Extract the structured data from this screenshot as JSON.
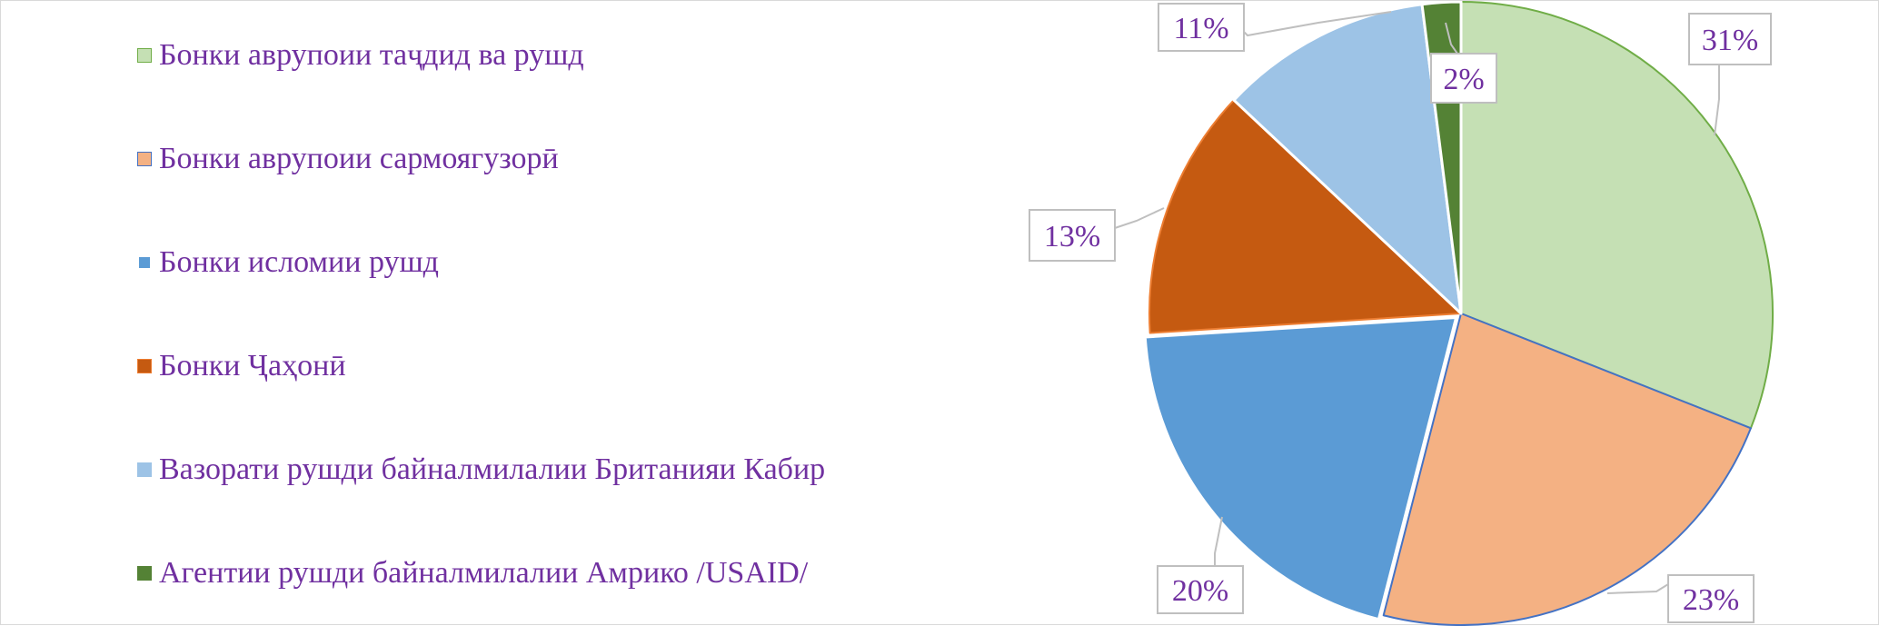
{
  "chart_data": {
    "type": "pie",
    "title": "",
    "legend_position": "left",
    "slices": [
      {
        "name": "Бонки аврупоии таҷдид ва рушд",
        "value": 31,
        "label": "31%",
        "color": "#c5e0b4",
        "edge": "#70ad47"
      },
      {
        "name": "Бонки аврупоии сармоягузорӣ",
        "value": 23,
        "label": "23%",
        "color": "#f4b183",
        "edge": "#4472c4"
      },
      {
        "name": "Бонки исломии рушд",
        "value": 20,
        "label": "20%",
        "color": "#5b9bd5",
        "edge": "#ffffff"
      },
      {
        "name": "Бонки Ҷаҳонӣ",
        "value": 13,
        "label": "13%",
        "color": "#c55a11",
        "edge": "#ed7d31"
      },
      {
        "name": "Вазорати рушди байналмилалии Британияи Кабир",
        "value": 11,
        "label": "11%",
        "color": "#9dc3e6",
        "edge": "#ffffff"
      },
      {
        "name": "Агентии рушди байналмилалии Амрико /USAID/",
        "value": 2,
        "label": "2%",
        "color": "#548235",
        "edge": "#ffffff"
      }
    ]
  }
}
